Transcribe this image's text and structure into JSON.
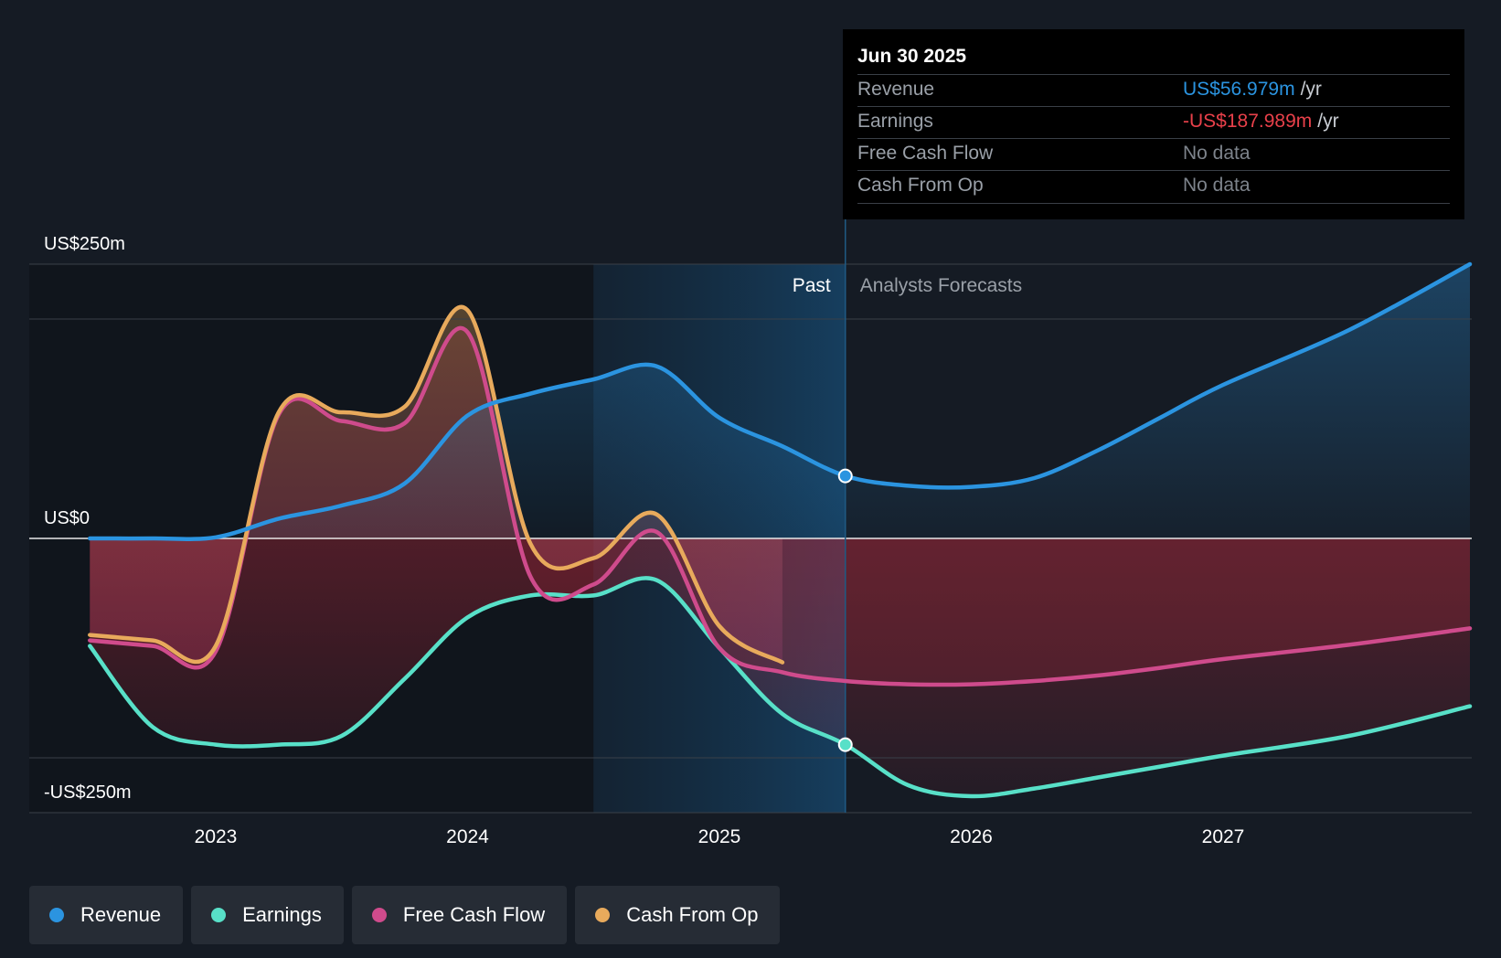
{
  "chart_data": {
    "type": "area",
    "y_unit": "US$m",
    "ylim": [
      -250,
      250
    ],
    "xlim": [
      2022.26,
      2027.98
    ],
    "y_axis_labels": {
      "top": "US$250m",
      "zero": "US$0",
      "bottom": "-US$250m"
    },
    "x_ticks": [
      {
        "value": 2023,
        "label": "2023"
      },
      {
        "value": 2024,
        "label": "2024"
      },
      {
        "value": 2025,
        "label": "2025"
      },
      {
        "value": 2026,
        "label": "2026"
      },
      {
        "value": 2027,
        "label": "2027"
      }
    ],
    "gridlines": [
      250,
      200,
      0,
      -200,
      -250
    ],
    "past_band_start": 2024.5,
    "forecast_start": 2025.5,
    "region_labels": {
      "past": "Past",
      "forecast": "Analysts Forecasts"
    },
    "series": [
      {
        "name": "Revenue",
        "color": "#2b94e0",
        "points": [
          [
            2022.5,
            0
          ],
          [
            2022.75,
            0
          ],
          [
            2023,
            1
          ],
          [
            2023.25,
            18
          ],
          [
            2023.5,
            30
          ],
          [
            2023.75,
            50
          ],
          [
            2024,
            112
          ],
          [
            2024.25,
            132
          ],
          [
            2024.5,
            145
          ],
          [
            2024.75,
            157
          ],
          [
            2025,
            110
          ],
          [
            2025.25,
            84
          ],
          [
            2025.5,
            57
          ],
          [
            2025.75,
            48
          ],
          [
            2026,
            47
          ],
          [
            2026.25,
            55
          ],
          [
            2026.5,
            80
          ],
          [
            2026.75,
            110
          ],
          [
            2027,
            140
          ],
          [
            2027.5,
            190
          ],
          [
            2027.98,
            250
          ]
        ]
      },
      {
        "name": "Earnings",
        "color": "#58e0c8",
        "points": [
          [
            2022.5,
            -98
          ],
          [
            2022.75,
            -172
          ],
          [
            2023,
            -188
          ],
          [
            2023.25,
            -188
          ],
          [
            2023.5,
            -180
          ],
          [
            2023.75,
            -128
          ],
          [
            2024,
            -72
          ],
          [
            2024.25,
            -52
          ],
          [
            2024.5,
            -52
          ],
          [
            2024.75,
            -38
          ],
          [
            2025,
            -100
          ],
          [
            2025.25,
            -160
          ],
          [
            2025.5,
            -188
          ],
          [
            2025.75,
            -225
          ],
          [
            2026,
            -235
          ],
          [
            2026.25,
            -228
          ],
          [
            2026.5,
            -218
          ],
          [
            2026.75,
            -208
          ],
          [
            2027,
            -198
          ],
          [
            2027.5,
            -180
          ],
          [
            2027.98,
            -153
          ]
        ]
      },
      {
        "name": "Free Cash Flow",
        "color": "#cf4b8c",
        "points": [
          [
            2022.5,
            -93
          ],
          [
            2022.75,
            -98
          ],
          [
            2023,
            -103
          ],
          [
            2023.25,
            113
          ],
          [
            2023.5,
            107
          ],
          [
            2023.75,
            105
          ],
          [
            2024,
            188
          ],
          [
            2024.25,
            -35
          ],
          [
            2024.5,
            -42
          ],
          [
            2024.75,
            6
          ],
          [
            2025,
            -100
          ],
          [
            2025.25,
            -122
          ],
          [
            2025.5,
            -130
          ],
          [
            2025.75,
            -133
          ],
          [
            2026,
            -133
          ],
          [
            2026.25,
            -130
          ],
          [
            2026.5,
            -125
          ],
          [
            2026.75,
            -118
          ],
          [
            2027,
            -110
          ],
          [
            2027.5,
            -97
          ],
          [
            2027.98,
            -82
          ]
        ]
      },
      {
        "name": "Cash From Op",
        "color": "#e8aa5c",
        "points": [
          [
            2022.5,
            -88
          ],
          [
            2022.75,
            -93
          ],
          [
            2023,
            -98
          ],
          [
            2023.25,
            115
          ],
          [
            2023.5,
            115
          ],
          [
            2023.75,
            120
          ],
          [
            2024,
            208
          ],
          [
            2024.25,
            -5
          ],
          [
            2024.5,
            -18
          ],
          [
            2024.75,
            22
          ],
          [
            2025,
            -80
          ],
          [
            2025.25,
            -113
          ]
        ]
      }
    ],
    "highlight_points": [
      {
        "series": "Revenue",
        "x": 2025.5,
        "y": 57
      },
      {
        "series": "Earnings",
        "x": 2025.5,
        "y": -188
      }
    ]
  },
  "tooltip": {
    "date": "Jun 30 2025",
    "rows": [
      {
        "label": "Revenue",
        "value": "US$56.979m",
        "unit": "/yr",
        "color": "#2b94e0"
      },
      {
        "label": "Earnings",
        "value": "-US$187.989m",
        "unit": "/yr",
        "color": "#e8404a"
      },
      {
        "label": "Free Cash Flow",
        "value": "No data",
        "unit": "",
        "color": "#7d838b"
      },
      {
        "label": "Cash From Op",
        "value": "No data",
        "unit": "",
        "color": "#7d838b"
      }
    ]
  },
  "legend": [
    {
      "label": "Revenue",
      "color": "#2b94e0"
    },
    {
      "label": "Earnings",
      "color": "#58e0c8"
    },
    {
      "label": "Free Cash Flow",
      "color": "#cf4b8c"
    },
    {
      "label": "Cash From Op",
      "color": "#e8aa5c"
    }
  ]
}
